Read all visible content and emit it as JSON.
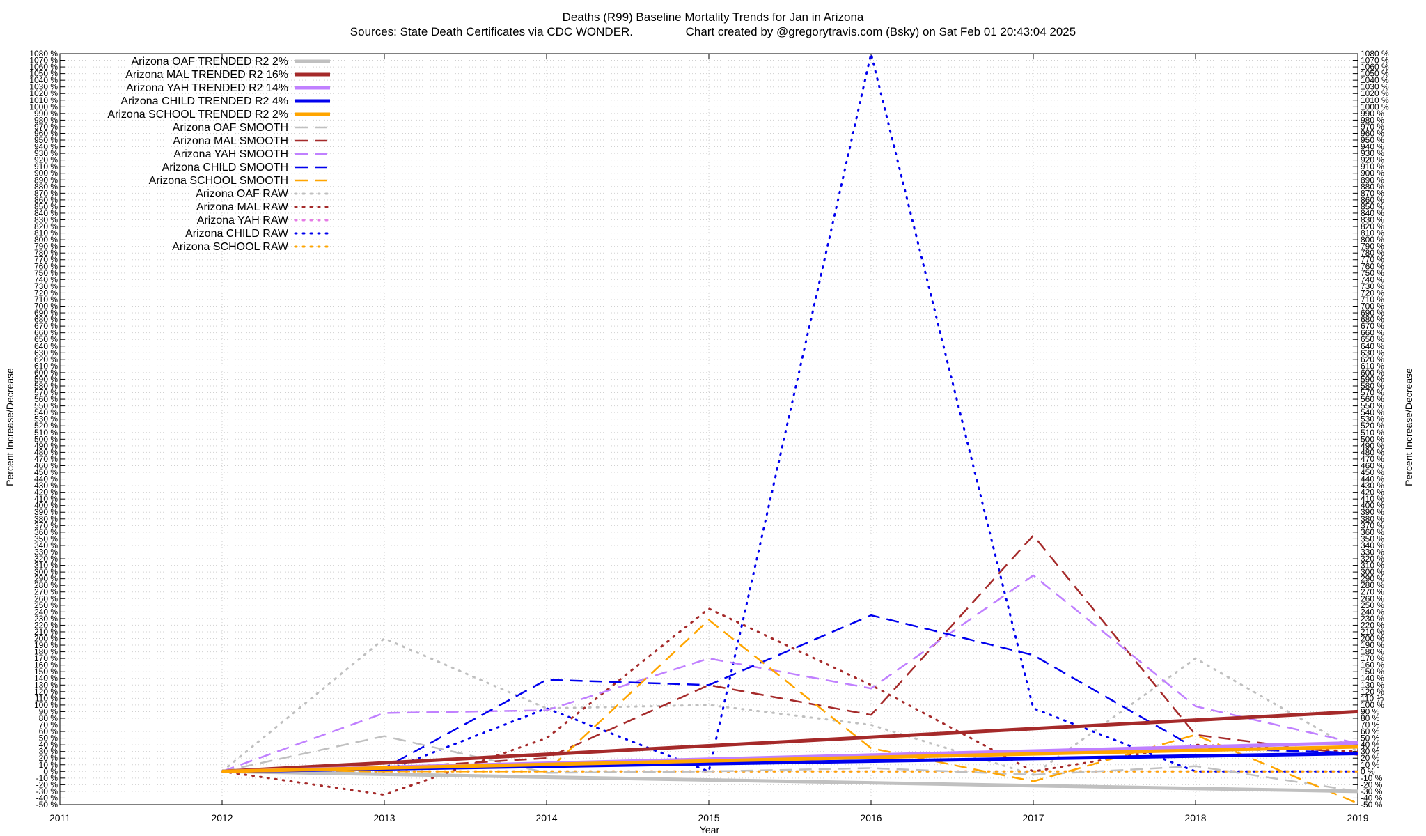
{
  "chart_data": {
    "type": "line",
    "title": "Deaths (R99)  Baseline Mortality Trends for Jan in Arizona",
    "subtitle": "Sources: State Death Certificates via CDC WONDER.                Chart created by @gregorytravis.com (Bsky) on Sat Feb 01 20:43:04 2025",
    "xlabel": "Year",
    "ylabel": "Percent Increase/Decrease",
    "xlim": [
      2011,
      2019
    ],
    "ylim": [
      -50,
      1080
    ],
    "ytick_step": 10,
    "ytick_suffix": " %",
    "xticks": [
      2011,
      2012,
      2013,
      2014,
      2015,
      2016,
      2017,
      2018,
      2019
    ],
    "grid": true,
    "legend_position": "top-left",
    "series": [
      {
        "name": "Arizona OAF TRENDED R2  2%",
        "style": "trend",
        "color": "#c0c0c0",
        "x": [
          2012,
          2019
        ],
        "y": [
          0,
          -30
        ]
      },
      {
        "name": "Arizona MAL TRENDED R2  16%",
        "style": "trend",
        "color": "#a52a2a",
        "x": [
          2012,
          2019
        ],
        "y": [
          0,
          90
        ]
      },
      {
        "name": "Arizona YAH TRENDED R2  14%",
        "style": "trend",
        "color": "#c080ff",
        "x": [
          2012,
          2019
        ],
        "y": [
          0,
          43
        ]
      },
      {
        "name": "Arizona CHILD TRENDED R2  4%",
        "style": "trend",
        "color": "#0000ee",
        "x": [
          2012,
          2019
        ],
        "y": [
          0,
          27
        ]
      },
      {
        "name": "Arizona SCHOOL TRENDED R2  2%",
        "style": "trend",
        "color": "#ffa500",
        "x": [
          2012,
          2019
        ],
        "y": [
          0,
          37
        ]
      },
      {
        "name": "Arizona OAF SMOOTH",
        "style": "smooth",
        "color": "#c0c0c0",
        "x": [
          2012,
          2013,
          2014,
          2015,
          2016,
          2017,
          2018,
          2019
        ],
        "y": [
          0,
          53,
          -2,
          0,
          5,
          -5,
          8,
          -30
        ]
      },
      {
        "name": "Arizona MAL SMOOTH",
        "style": "smooth",
        "color": "#a52a2a",
        "x": [
          2012,
          2013,
          2014,
          2015,
          2016,
          2017,
          2018,
          2019
        ],
        "y": [
          0,
          5,
          20,
          130,
          85,
          355,
          55,
          25
        ]
      },
      {
        "name": "Arizona YAH SMOOTH",
        "style": "smooth",
        "color": "#c080ff",
        "x": [
          2012,
          2013,
          2014,
          2015,
          2016,
          2017,
          2018,
          2019
        ],
        "y": [
          0,
          88,
          92,
          170,
          125,
          295,
          98,
          42
        ]
      },
      {
        "name": "Arizona CHILD SMOOTH",
        "style": "smooth",
        "color": "#0000ee",
        "x": [
          2012,
          2013,
          2014,
          2015,
          2016,
          2017,
          2018,
          2019
        ],
        "y": [
          0,
          5,
          138,
          130,
          235,
          175,
          35,
          28
        ]
      },
      {
        "name": "Arizona SCHOOL SMOOTH",
        "style": "smooth",
        "color": "#ffa500",
        "x": [
          2012,
          2013,
          2014,
          2015,
          2016,
          2017,
          2018,
          2019
        ],
        "y": [
          0,
          0,
          0,
          228,
          35,
          -15,
          55,
          -48
        ]
      },
      {
        "name": "Arizona OAF RAW",
        "style": "raw",
        "color": "#c0c0c0",
        "x": [
          2012,
          2013,
          2014,
          2015,
          2016,
          2017,
          2018,
          2019
        ],
        "y": [
          0,
          200,
          95,
          100,
          70,
          -5,
          170,
          30
        ]
      },
      {
        "name": "Arizona MAL RAW",
        "style": "raw",
        "color": "#a52a2a",
        "x": [
          2012,
          2013,
          2014,
          2015,
          2016,
          2017,
          2018,
          2019
        ],
        "y": [
          0,
          -35,
          50,
          245,
          130,
          0,
          40,
          30
        ]
      },
      {
        "name": "Arizona YAH RAW",
        "style": "raw",
        "color": "#e67be6",
        "x": [
          2012,
          2013,
          2014,
          2015,
          2016,
          2017,
          2018,
          2019
        ],
        "y": [
          0,
          0,
          0,
          0,
          0,
          0,
          0,
          0
        ]
      },
      {
        "name": "Arizona CHILD RAW",
        "style": "raw",
        "color": "#0000ee",
        "x": [
          2012,
          2013,
          2014,
          2015,
          2016,
          2017,
          2018,
          2019
        ],
        "y": [
          0,
          0,
          95,
          0,
          1080,
          95,
          0,
          0
        ]
      },
      {
        "name": "Arizona SCHOOL RAW",
        "style": "raw",
        "color": "#ffa500",
        "x": [
          2012,
          2013,
          2014,
          2015,
          2016,
          2017,
          2018,
          2019
        ],
        "y": [
          0,
          0,
          0,
          0,
          0,
          0,
          0,
          0
        ]
      }
    ]
  }
}
